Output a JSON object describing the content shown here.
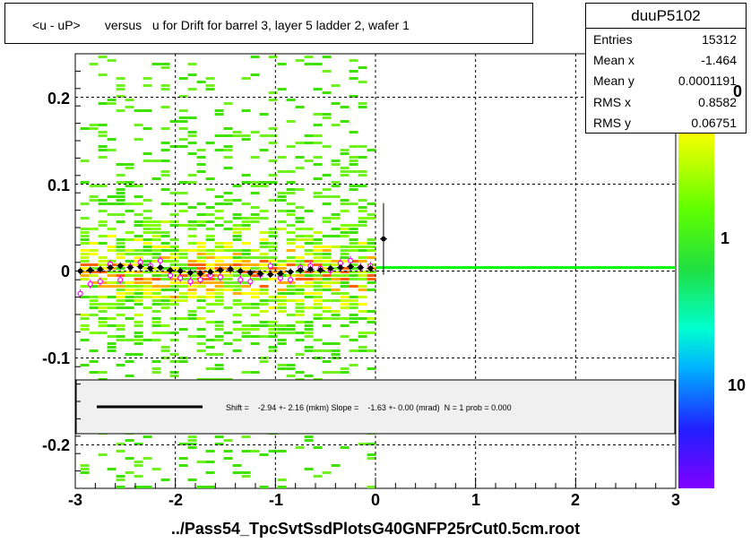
{
  "title": "<u - uP>       versus   u for Drift for barrel 3, layer 5 ladder 2, wafer 1",
  "stats": {
    "name": "duuP5102",
    "rows": [
      {
        "label": "Entries",
        "value": "15312"
      },
      {
        "label": "Mean x",
        "value": "-1.464"
      },
      {
        "label": "Mean y",
        "value": "0.0001191"
      },
      {
        "label": "RMS x",
        "value": "0.8582"
      },
      {
        "label": "RMS y",
        "value": "0.06751"
      }
    ]
  },
  "fit_text": "Shift =    -2.94 +- 2.16 (mkm) Slope =    -1.63 +- 0.00 (mrad)  N = 1 prob = 0.000",
  "file_label": "../Pass54_TpcSvtSsdPlotsG40GNFP25rCut0.5cm.root",
  "colors": {
    "profile_black": "#000000",
    "profile_pink": "#ff00ff",
    "fit_line": "#00ff00",
    "legend_fill": "#f0f0f0"
  },
  "chart_data": {
    "type": "heatmap",
    "title": "<u - uP>       versus   u for Drift for barrel 3, layer 5 ladder 2, wafer 1",
    "xlabel": "",
    "ylabel": "",
    "xlim": [
      -3,
      3
    ],
    "ylim": [
      -0.25,
      0.25
    ],
    "x_ticks": [
      "-3",
      "-2",
      "-1",
      "0",
      "1",
      "2",
      "3"
    ],
    "y_ticks": [
      "-0.2",
      "-0.1",
      "0",
      "0.1",
      "0.2"
    ],
    "z_ticks": [
      "0",
      "1",
      "10"
    ],
    "z_scale": "log",
    "grid": true,
    "filled_x_range": [
      -2.95,
      0.0
    ],
    "profile_black": {
      "x": [
        -2.95,
        -2.85,
        -2.75,
        -2.65,
        -2.55,
        -2.45,
        -2.35,
        -2.25,
        -2.15,
        -2.05,
        -1.95,
        -1.85,
        -1.75,
        -1.65,
        -1.55,
        -1.45,
        -1.35,
        -1.25,
        -1.15,
        -1.05,
        -0.95,
        -0.85,
        -0.75,
        -0.65,
        -0.55,
        -0.45,
        -0.35,
        -0.25,
        -0.15,
        -0.05,
        0.08
      ],
      "y": [
        0.0,
        0.001,
        0.002,
        0.004,
        0.006,
        0.004,
        0.005,
        0.003,
        0.004,
        0.001,
        0.0,
        -0.002,
        -0.003,
        -0.001,
        0.001,
        0.002,
        0.0,
        -0.002,
        -0.003,
        -0.004,
        -0.003,
        -0.001,
        0.001,
        0.002,
        0.001,
        0.003,
        0.004,
        0.005,
        0.004,
        0.003,
        0.037
      ]
    },
    "profile_pink": {
      "x": [
        -2.95,
        -2.85,
        -2.75,
        -2.65,
        -2.55,
        -2.45,
        -2.35,
        -2.25,
        -2.15,
        -2.05,
        -1.95,
        -1.85,
        -1.75,
        -1.65,
        -1.55,
        -1.45,
        -1.35,
        -1.25,
        -1.15,
        -1.05,
        -0.95,
        -0.85,
        -0.75,
        -0.65,
        -0.55,
        -0.45,
        -0.35,
        -0.25,
        -0.15,
        -0.05
      ],
      "y": [
        -0.026,
        -0.015,
        -0.012,
        0.008,
        -0.01,
        0.005,
        0.01,
        0.006,
        0.012,
        -0.005,
        -0.008,
        -0.012,
        -0.01,
        -0.005,
        -0.007,
        0.002,
        -0.01,
        -0.012,
        -0.004,
        0.006,
        -0.008,
        -0.01,
        0.004,
        0.006,
        0.003,
        0.001,
        0.009,
        0.012,
        0.004,
        0.006
      ]
    },
    "fit_line": {
      "x": [
        0.0,
        3.0
      ],
      "y": [
        0.004,
        0.004
      ]
    }
  }
}
